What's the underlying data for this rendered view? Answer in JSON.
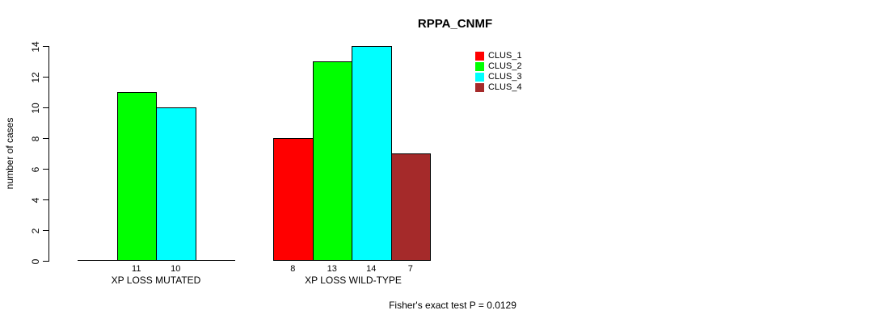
{
  "title": "RPPA_CNMF",
  "y_axis": {
    "label": "number of cases"
  },
  "footer": {
    "text": "Fisher's exact test P = 0.0129"
  },
  "legend": {
    "items": [
      {
        "label": "CLUS_1",
        "color": "#ff0000"
      },
      {
        "label": "CLUS_2",
        "color": "#00ff00"
      },
      {
        "label": "CLUS_3",
        "color": "#00ffff"
      },
      {
        "label": "CLUS_4",
        "color": "#a52a2a"
      }
    ]
  },
  "chart_data": {
    "type": "bar",
    "title": "RPPA_CNMF",
    "xlabel": "",
    "ylabel": "number of cases",
    "ylim": [
      0,
      14
    ],
    "yticks": [
      0,
      2,
      4,
      6,
      8,
      10,
      12,
      14
    ],
    "grid": false,
    "legend_position": "top-right",
    "categories": [
      "XP LOSS MUTATED",
      "XP LOSS WILD-TYPE"
    ],
    "series": [
      {
        "name": "CLUS_1",
        "color": "#ff0000",
        "values": [
          0,
          8
        ]
      },
      {
        "name": "CLUS_2",
        "color": "#00ff00",
        "values": [
          11,
          13
        ]
      },
      {
        "name": "CLUS_3",
        "color": "#00ffff",
        "values": [
          10,
          14
        ]
      },
      {
        "name": "CLUS_4",
        "color": "#a52a2a",
        "values": [
          0,
          7
        ]
      }
    ],
    "bar_value_labels_shown": [
      11,
      10,
      8,
      13,
      14,
      7
    ],
    "annotation": "Fisher's exact test P = 0.0129"
  }
}
